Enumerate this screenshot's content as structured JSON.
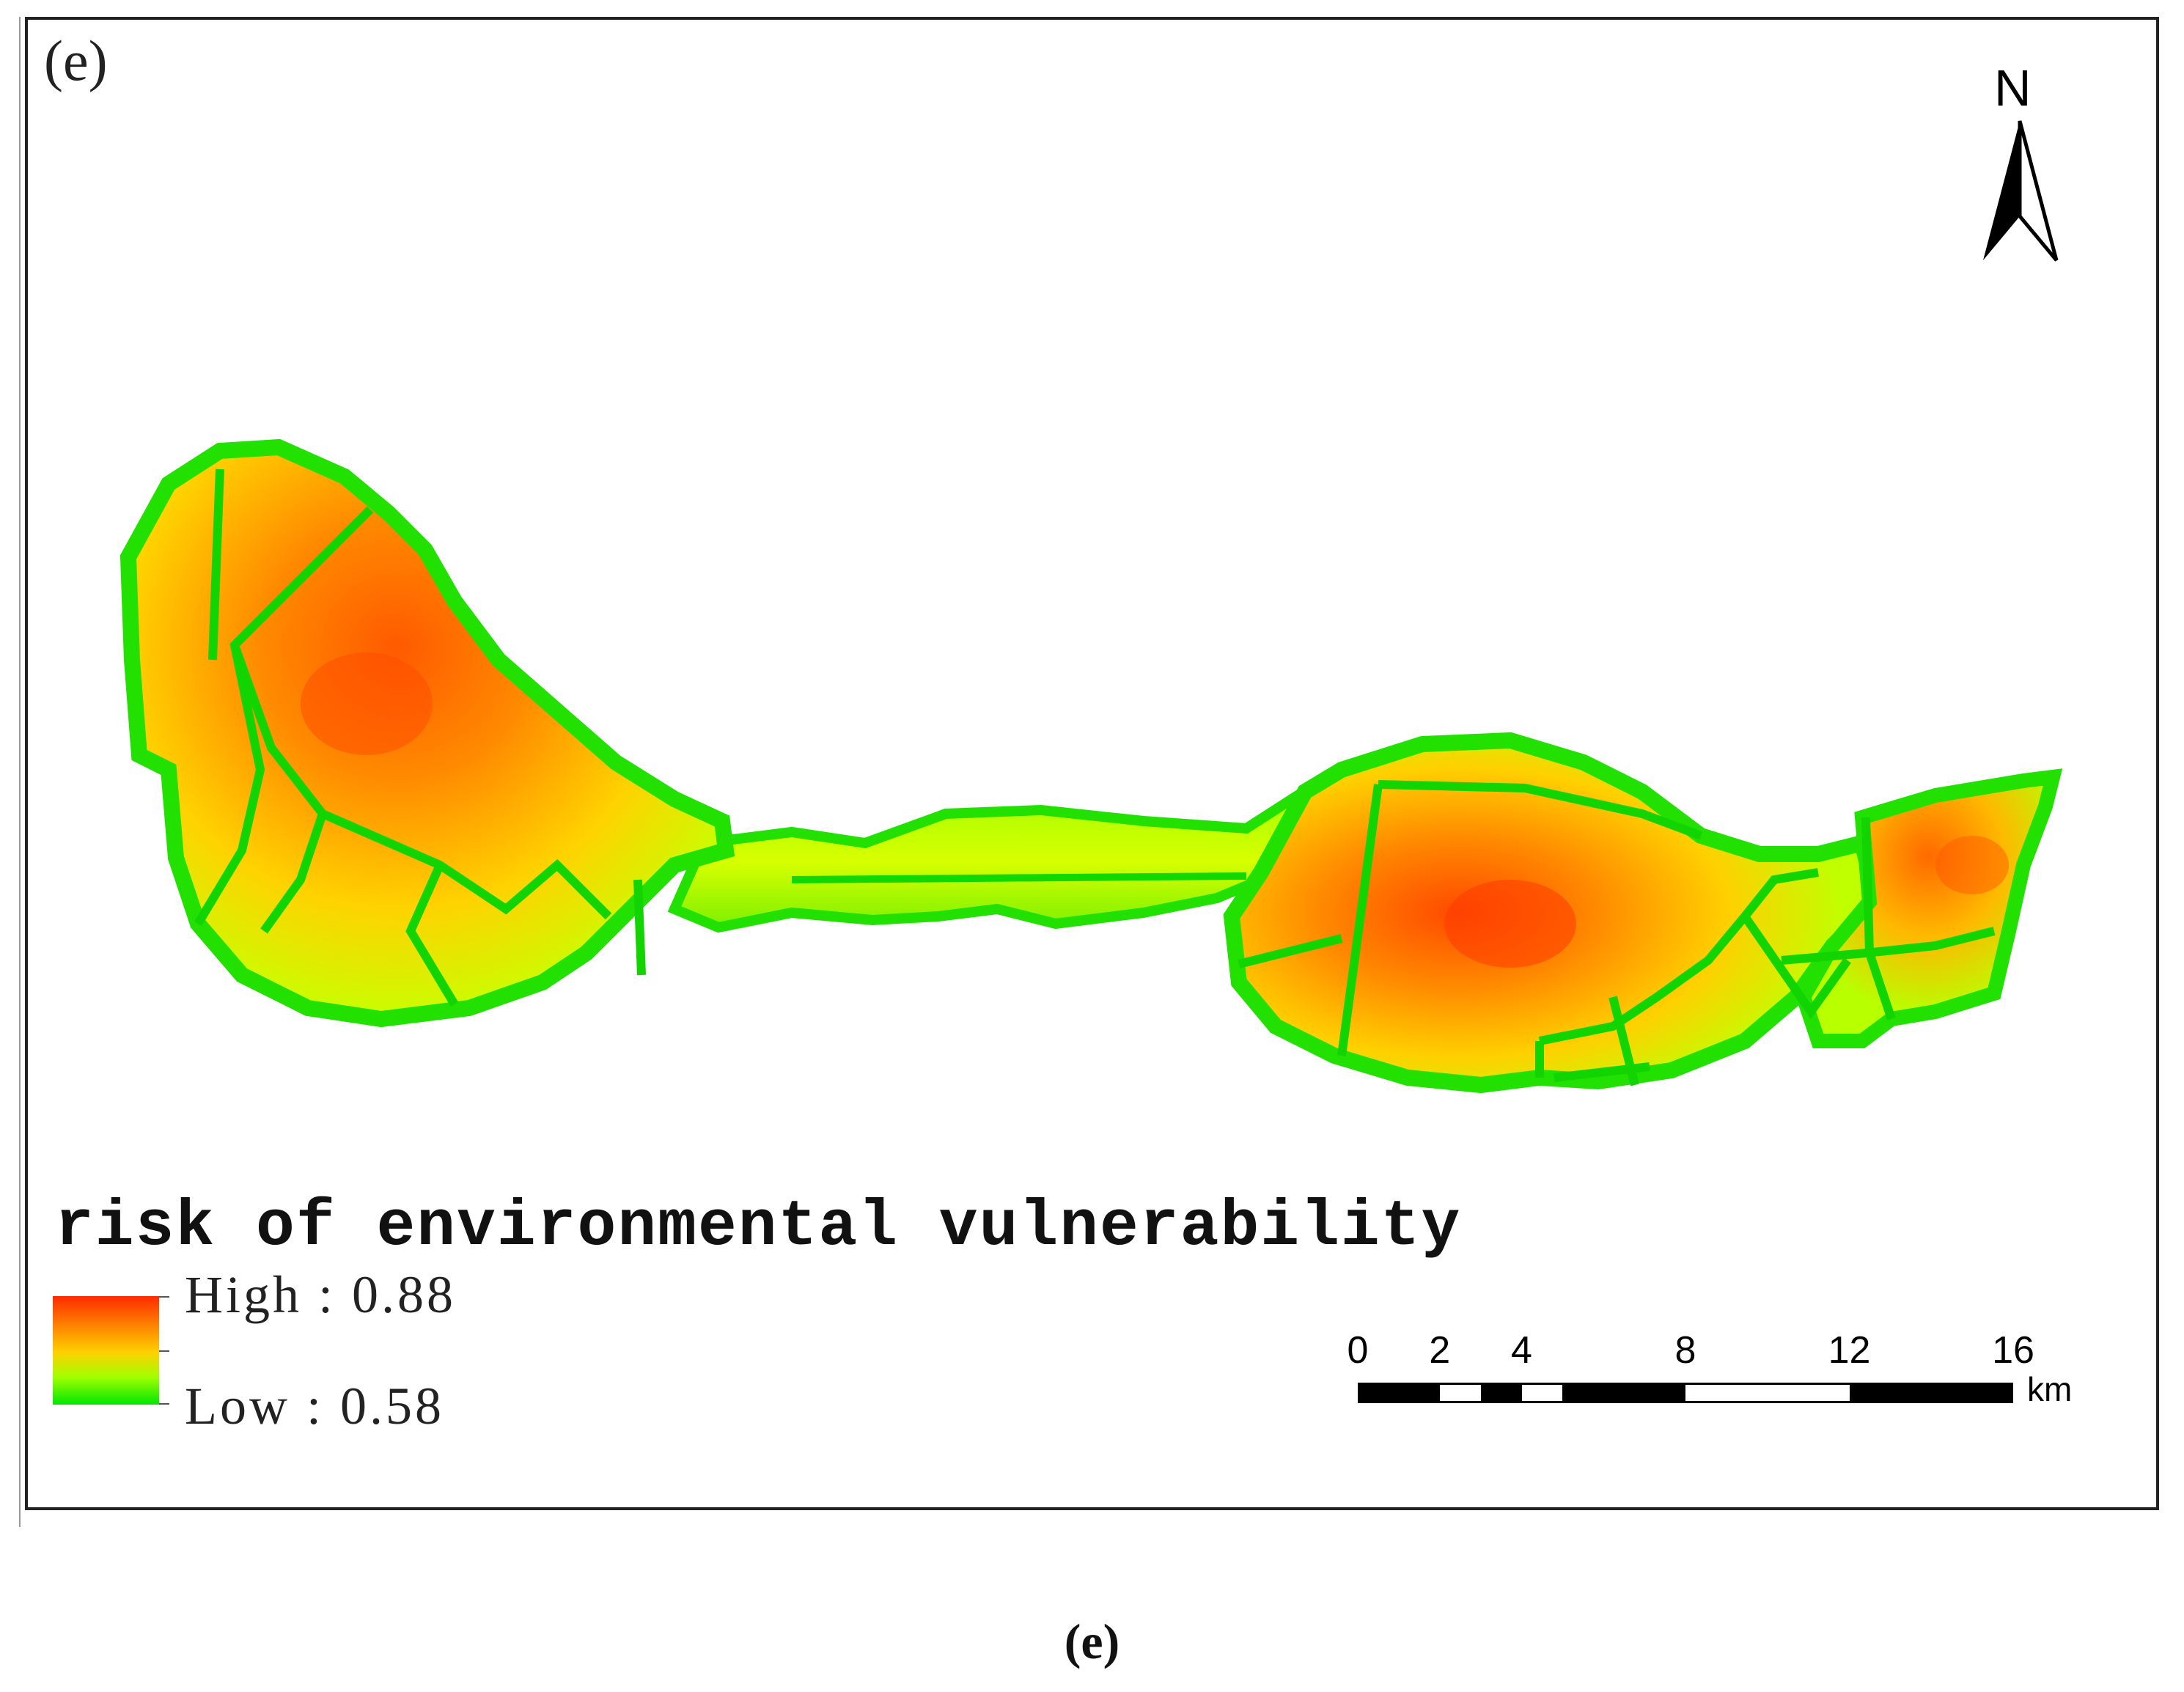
{
  "panel_label": "(e)",
  "caption": "(e)",
  "north": {
    "letter": "N",
    "icon": "north-arrow-icon"
  },
  "legend": {
    "title": "risk of environmental vulnerability",
    "high_label": "High : 0.88",
    "low_label": "Low : 0.58",
    "high_value": 0.88,
    "low_value": 0.58,
    "colors": {
      "high": "#ff2a00",
      "mid": "#ffd000",
      "low": "#00e600"
    }
  },
  "scale_bar": {
    "unit": "km",
    "ticks": [
      "0",
      "2",
      "4",
      "8",
      "12",
      "16"
    ],
    "tick_values": [
      0,
      2,
      4,
      8,
      12,
      16
    ],
    "segments": [
      {
        "from": 0,
        "to": 2,
        "color": "#000000"
      },
      {
        "from": 2,
        "to": 3,
        "color": "#ffffff"
      },
      {
        "from": 3,
        "to": 4,
        "color": "#000000"
      },
      {
        "from": 4,
        "to": 5,
        "color": "#ffffff"
      },
      {
        "from": 5,
        "to": 8,
        "color": "#000000"
      },
      {
        "from": 8,
        "to": 12,
        "color": "#ffffff"
      },
      {
        "from": 12,
        "to": 16,
        "color": "#000000"
      }
    ]
  }
}
